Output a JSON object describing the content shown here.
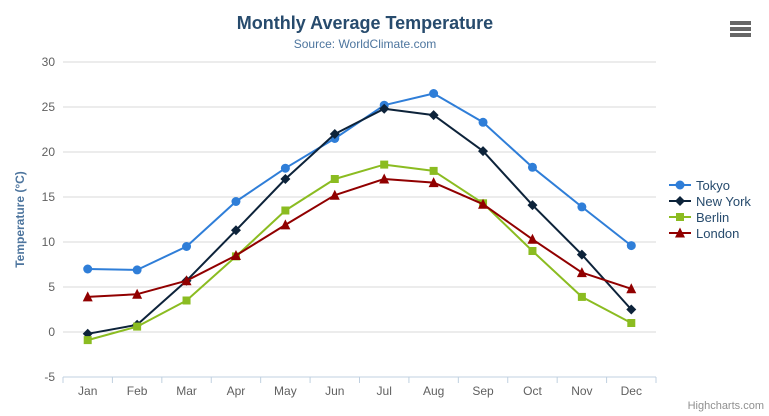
{
  "chart_data": {
    "type": "line",
    "title": "Monthly Average Temperature",
    "subtitle": "Source: WorldClimate.com",
    "xlabel": "",
    "ylabel": "Temperature (°C)",
    "ylim": [
      -5,
      30
    ],
    "ytick_step": 5,
    "grid": true,
    "legend_position": "right-middle-vertical",
    "categories": [
      "Jan",
      "Feb",
      "Mar",
      "Apr",
      "May",
      "Jun",
      "Jul",
      "Aug",
      "Sep",
      "Oct",
      "Nov",
      "Dec"
    ],
    "series": [
      {
        "name": "Tokyo",
        "color": "#2f7ed8",
        "marker": "circle",
        "values": [
          7.0,
          6.9,
          9.5,
          14.5,
          18.2,
          21.5,
          25.2,
          26.5,
          23.3,
          18.3,
          13.9,
          9.6
        ]
      },
      {
        "name": "New York",
        "color": "#0d233a",
        "marker": "diamond",
        "values": [
          -0.2,
          0.8,
          5.7,
          11.3,
          17.0,
          22.0,
          24.8,
          24.1,
          20.1,
          14.1,
          8.6,
          2.5
        ]
      },
      {
        "name": "Berlin",
        "color": "#8bbc21",
        "marker": "square",
        "values": [
          -0.9,
          0.6,
          3.5,
          8.4,
          13.5,
          17.0,
          18.6,
          17.9,
          14.3,
          9.0,
          3.9,
          1.0
        ]
      },
      {
        "name": "London",
        "color": "#910000",
        "marker": "triangle",
        "values": [
          3.9,
          4.2,
          5.7,
          8.5,
          11.9,
          15.2,
          17.0,
          16.6,
          14.2,
          10.3,
          6.6,
          4.8
        ]
      }
    ]
  },
  "credit": {
    "label": "Highcharts.com"
  },
  "icons": {
    "menu": "hamburger-icon"
  },
  "colors": {
    "title": "#274b6d",
    "subtitle": "#4d759e",
    "axis_title": "#4d759e",
    "tick_label": "#606060",
    "grid_line": "#d8d8d8",
    "axis_line": "#c0d0e0",
    "legend_text": "#274b6d",
    "credit_text": "#909090",
    "menu_icon": "#666666"
  }
}
